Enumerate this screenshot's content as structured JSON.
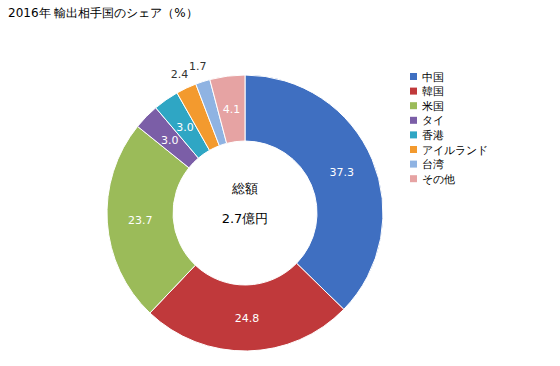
{
  "chart_data": {
    "type": "donut",
    "title": "2016年 輸出相手国のシェア（%）",
    "categories": [
      "中国",
      "韓国",
      "米国",
      "タイ",
      "香港",
      "アイルランド",
      "台湾",
      "その他"
    ],
    "values": [
      37.3,
      24.8,
      23.7,
      3.0,
      3.0,
      2.4,
      1.7,
      4.1
    ],
    "value_labels": [
      "37.3",
      "24.8",
      "23.7",
      "3.0",
      "3.0",
      "2.4",
      "1.7",
      "4.1"
    ],
    "colors": [
      "#3f6fc1",
      "#c0393b",
      "#9bbb59",
      "#7b5ea7",
      "#2fa6c4",
      "#f39a2e",
      "#8fb3e2",
      "#e6a3a3"
    ],
    "annotations": [
      "総額",
      "2.7億円"
    ],
    "data_labels": true,
    "legend": "right"
  }
}
